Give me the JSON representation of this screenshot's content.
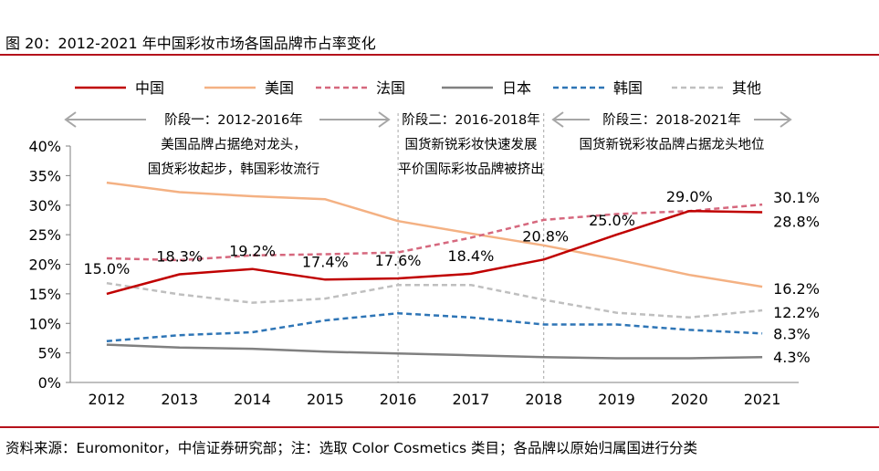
{
  "figure": {
    "title": "图 20：2012-2021 年中国彩妆市场各国品牌市占率变化",
    "source": "资料来源：Euromonitor，中信证券研究部；注：选取 Color Cosmetics 类目；各品牌以原始归属国进行分类"
  },
  "chart_data": {
    "type": "line",
    "title": "2012-2021 年中国彩妆市场各国品牌市占率变化",
    "xlabel": "",
    "ylabel": "",
    "ylim": [
      0,
      40
    ],
    "yticks": [
      "0%",
      "5%",
      "10%",
      "15%",
      "20%",
      "25%",
      "30%",
      "35%",
      "40%"
    ],
    "categories": [
      "2012",
      "2013",
      "2014",
      "2015",
      "2016",
      "2017",
      "2018",
      "2019",
      "2020",
      "2021"
    ],
    "legend_position": "top",
    "series": [
      {
        "name": "中国",
        "color": "#c00000",
        "dash": "solid",
        "values": [
          15.0,
          18.3,
          19.2,
          17.4,
          17.6,
          18.4,
          20.8,
          25.0,
          29.0,
          28.8
        ],
        "labels": [
          "15.0%",
          "18.3%",
          "19.2%",
          "17.4%",
          "17.6%",
          "18.4%",
          "20.8%",
          "25.0%",
          "29.0%",
          "28.8%"
        ]
      },
      {
        "name": "美国",
        "color": "#f4b183",
        "dash": "solid",
        "values": [
          33.8,
          32.2,
          31.5,
          31.0,
          27.3,
          25.2,
          23.2,
          20.8,
          18.2,
          16.2
        ],
        "labels": [
          "",
          "",
          "",
          "",
          "",
          "",
          "",
          "",
          "",
          "16.2%"
        ]
      },
      {
        "name": "法国",
        "color": "#d6687e",
        "dash": "dashed",
        "values": [
          21.0,
          20.7,
          21.5,
          21.7,
          22.0,
          24.5,
          27.5,
          28.5,
          29.0,
          30.1
        ],
        "labels": [
          "",
          "",
          "",
          "",
          "",
          "",
          "",
          "",
          "",
          "30.1%"
        ]
      },
      {
        "name": "日本",
        "color": "#808080",
        "dash": "solid",
        "values": [
          6.4,
          5.9,
          5.7,
          5.2,
          4.9,
          4.6,
          4.3,
          4.1,
          4.1,
          4.3
        ],
        "labels": [
          "",
          "",
          "",
          "",
          "",
          "",
          "",
          "",
          "",
          "4.3%"
        ]
      },
      {
        "name": "韩国",
        "color": "#2e75b6",
        "dash": "dashed",
        "values": [
          7.0,
          8.0,
          8.5,
          10.5,
          11.7,
          11.0,
          9.8,
          9.8,
          8.9,
          8.3
        ],
        "labels": [
          "",
          "",
          "",
          "",
          "",
          "",
          "",
          "",
          "",
          "8.3%"
        ]
      },
      {
        "name": "其他",
        "color": "#bfbfbf",
        "dash": "dashed",
        "values": [
          16.8,
          14.9,
          13.5,
          14.2,
          16.5,
          16.5,
          14.0,
          11.8,
          11.0,
          12.2
        ],
        "labels": [
          "",
          "",
          "",
          "",
          "",
          "",
          "",
          "",
          "",
          "12.2%"
        ]
      }
    ],
    "stage_dividers": [
      "2016",
      "2018"
    ],
    "stages": [
      {
        "lines": [
          "阶段一：2012-2016年",
          "美国品牌占据绝对龙头，",
          "国货彩妆起步，韩国彩妆流行"
        ]
      },
      {
        "lines": [
          "阶段二：2016-2018年",
          "国货新锐彩妆快速发展",
          "平价国际彩妆品牌被挤出"
        ]
      },
      {
        "lines": [
          "阶段三：2018-2021年",
          "国货新锐彩妆品牌占据龙头地位"
        ]
      }
    ]
  }
}
